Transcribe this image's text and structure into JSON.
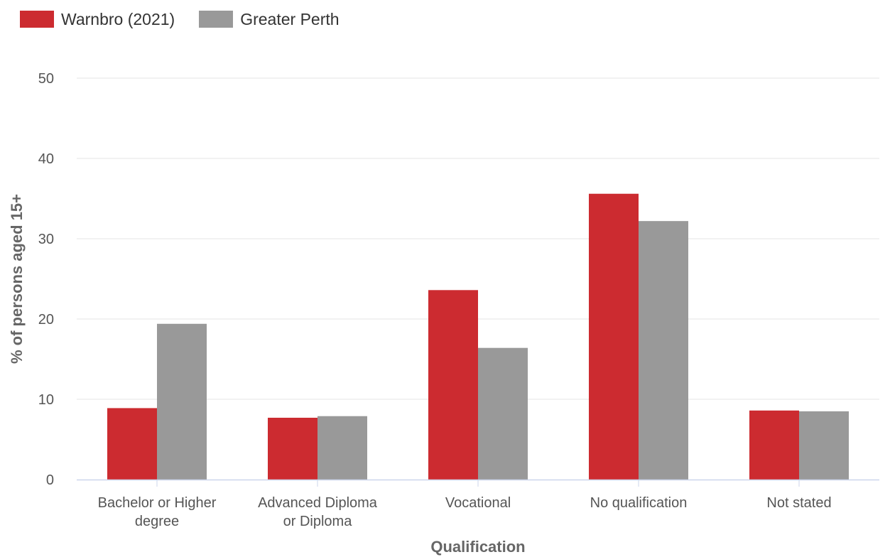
{
  "legend": [
    {
      "label": "Warnbro (2021)",
      "color": "#cc2b30"
    },
    {
      "label": "Greater Perth",
      "color": "#999999"
    }
  ],
  "chart_data": {
    "type": "bar",
    "title": "",
    "xlabel": "Qualification",
    "ylabel": "% of persons aged 15+",
    "ylim": [
      0,
      50
    ],
    "yticks": [
      0,
      10,
      20,
      30,
      40,
      50
    ],
    "grid": true,
    "legend_position": "top-left",
    "categories": [
      [
        "Bachelor or Higher",
        "degree"
      ],
      [
        "Advanced Diploma",
        "or Diploma"
      ],
      [
        "Vocational"
      ],
      [
        "No qualification"
      ],
      [
        "Not stated"
      ]
    ],
    "series": [
      {
        "name": "Warnbro (2021)",
        "color": "#cc2b30",
        "values": [
          8.9,
          7.7,
          23.6,
          35.6,
          8.6
        ]
      },
      {
        "name": "Greater Perth",
        "color": "#999999",
        "values": [
          19.4,
          7.9,
          16.4,
          32.2,
          8.5
        ]
      }
    ]
  }
}
